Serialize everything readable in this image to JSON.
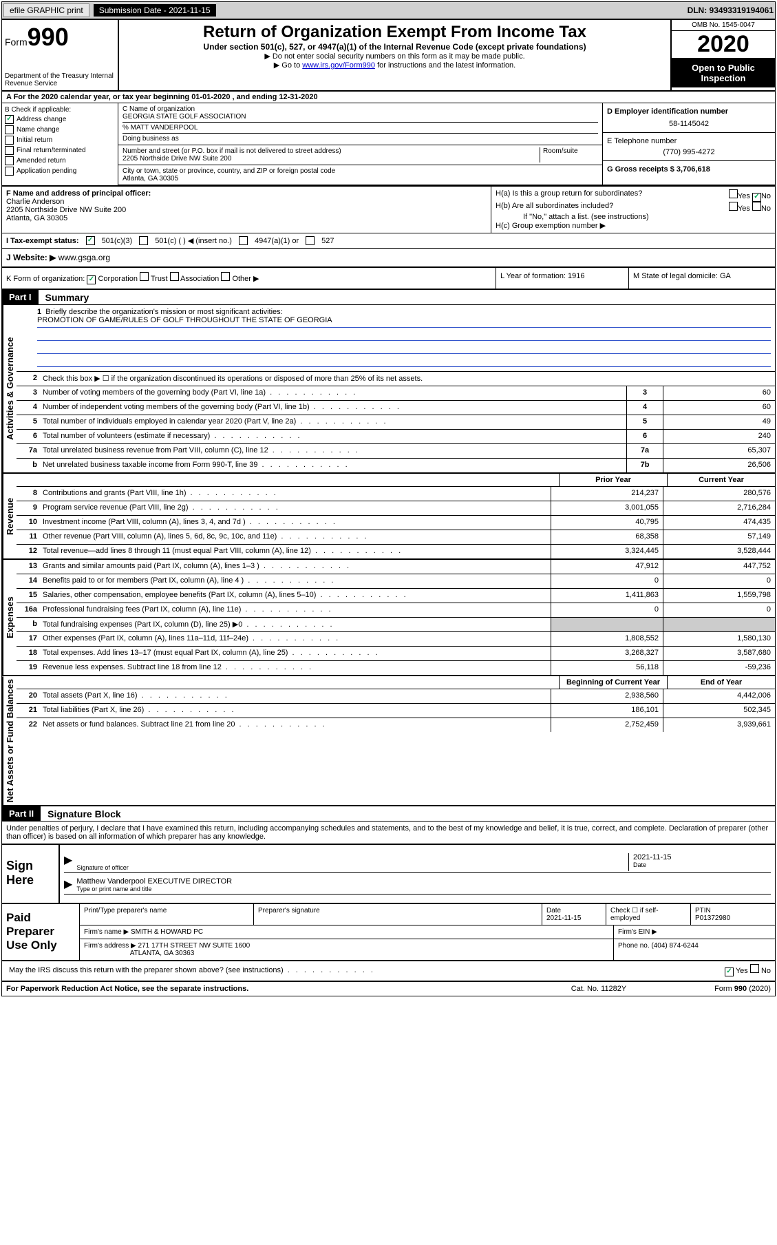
{
  "topbar": {
    "efile": "efile GRAPHIC print",
    "submission_label": "Submission Date - 2021-11-15",
    "dln": "DLN: 93493319194061"
  },
  "header": {
    "form_word": "Form",
    "form_num": "990",
    "dept": "Department of the Treasury\nInternal Revenue Service",
    "title": "Return of Organization Exempt From Income Tax",
    "sub": "Under section 501(c), 527, or 4947(a)(1) of the Internal Revenue Code (except private foundations)",
    "note1": "▶ Do not enter social security numbers on this form as it may be made public.",
    "note2_pre": "▶ Go to ",
    "note2_link": "www.irs.gov/Form990",
    "note2_post": " for instructions and the latest information.",
    "omb": "OMB No. 1545-0047",
    "year": "2020",
    "inspect": "Open to Public Inspection"
  },
  "row_a": "A For the 2020 calendar year, or tax year beginning 01-01-2020    , and ending 12-31-2020",
  "box_b": {
    "label": "B Check if applicable:",
    "address": "Address change",
    "name": "Name change",
    "initial": "Initial return",
    "final": "Final return/terminated",
    "amended": "Amended return",
    "app": "Application pending"
  },
  "box_c": {
    "label": "C Name of organization",
    "org": "GEORGIA STATE GOLF ASSOCIATION",
    "care": "% MATT VANDERPOOL",
    "dba_label": "Doing business as",
    "addr_label": "Number and street (or P.O. box if mail is not delivered to street address)",
    "room": "Room/suite",
    "street": "2205 Northside Drive NW Suite 200",
    "city_label": "City or town, state or province, country, and ZIP or foreign postal code",
    "city": "Atlanta, GA  30305"
  },
  "box_d": {
    "label": "D Employer identification number",
    "ein": "58-1145042",
    "e_label": "E Telephone number",
    "phone": "(770) 995-4272",
    "g_label": "G Gross receipts $ 3,706,618"
  },
  "box_f": {
    "label": "F Name and address of principal officer:",
    "name": "Charlie Anderson",
    "street": "2205 Northside Drive NW Suite 200",
    "city": "Atlanta, GA  30305"
  },
  "box_h": {
    "ha": "H(a)  Is this a group return for subordinates?",
    "hb": "H(b)  Are all subordinates included?",
    "hb_note": "If \"No,\" attach a list. (see instructions)",
    "hc": "H(c)  Group exemption number ▶",
    "yes": "Yes",
    "no": "No"
  },
  "tax_status": {
    "label": "I  Tax-exempt status:",
    "o1": "501(c)(3)",
    "o2": "501(c) (  ) ◀ (insert no.)",
    "o3": "4947(a)(1) or",
    "o4": "527"
  },
  "website": {
    "label": "J  Website: ▶",
    "val": "www.gsga.org"
  },
  "k": {
    "label": "K Form of organization:",
    "corp": "Corporation",
    "trust": "Trust",
    "assoc": "Association",
    "other": "Other ▶"
  },
  "l": {
    "label": "L Year of formation: 1916"
  },
  "m": {
    "label": "M State of legal domicile: GA"
  },
  "part1": {
    "header": "Part I",
    "title": "Summary",
    "side_gov": "Activities & Governance",
    "side_rev": "Revenue",
    "side_exp": "Expenses",
    "side_net": "Net Assets or Fund Balances",
    "l1": "Briefly describe the organization's mission or most significant activities:",
    "l1_val": "PROMOTION OF GAME/RULES OF GOLF THROUGHOUT THE STATE OF GEORGIA",
    "l2": "Check this box ▶ ☐  if the organization discontinued its operations or disposed of more than 25% of its net assets.",
    "lines_gov": [
      {
        "n": "3",
        "t": "Number of voting members of the governing body (Part VI, line 1a)",
        "box": "3",
        "v": "60"
      },
      {
        "n": "4",
        "t": "Number of independent voting members of the governing body (Part VI, line 1b)",
        "box": "4",
        "v": "60"
      },
      {
        "n": "5",
        "t": "Total number of individuals employed in calendar year 2020 (Part V, line 2a)",
        "box": "5",
        "v": "49"
      },
      {
        "n": "6",
        "t": "Total number of volunteers (estimate if necessary)",
        "box": "6",
        "v": "240"
      },
      {
        "n": "7a",
        "t": "Total unrelated business revenue from Part VIII, column (C), line 12",
        "box": "7a",
        "v": "65,307"
      },
      {
        "n": "b",
        "t": "Net unrelated business taxable income from Form 990-T, line 39",
        "box": "7b",
        "v": "26,506"
      }
    ],
    "hdr_prior": "Prior Year",
    "hdr_current": "Current Year",
    "lines_rev": [
      {
        "n": "8",
        "t": "Contributions and grants (Part VIII, line 1h)",
        "p": "214,237",
        "c": "280,576"
      },
      {
        "n": "9",
        "t": "Program service revenue (Part VIII, line 2g)",
        "p": "3,001,055",
        "c": "2,716,284"
      },
      {
        "n": "10",
        "t": "Investment income (Part VIII, column (A), lines 3, 4, and 7d )",
        "p": "40,795",
        "c": "474,435"
      },
      {
        "n": "11",
        "t": "Other revenue (Part VIII, column (A), lines 5, 6d, 8c, 9c, 10c, and 11e)",
        "p": "68,358",
        "c": "57,149"
      },
      {
        "n": "12",
        "t": "Total revenue—add lines 8 through 11 (must equal Part VIII, column (A), line 12)",
        "p": "3,324,445",
        "c": "3,528,444"
      }
    ],
    "lines_exp": [
      {
        "n": "13",
        "t": "Grants and similar amounts paid (Part IX, column (A), lines 1–3 )",
        "p": "47,912",
        "c": "447,752"
      },
      {
        "n": "14",
        "t": "Benefits paid to or for members (Part IX, column (A), line 4 )",
        "p": "0",
        "c": "0"
      },
      {
        "n": "15",
        "t": "Salaries, other compensation, employee benefits (Part IX, column (A), lines 5–10)",
        "p": "1,411,863",
        "c": "1,559,798"
      },
      {
        "n": "16a",
        "t": "Professional fundraising fees (Part IX, column (A), line 11e)",
        "p": "0",
        "c": "0"
      },
      {
        "n": "b",
        "t": "Total fundraising expenses (Part IX, column (D), line 25) ▶0",
        "p": "",
        "c": "",
        "shade": true
      },
      {
        "n": "17",
        "t": "Other expenses (Part IX, column (A), lines 11a–11d, 11f–24e)",
        "p": "1,808,552",
        "c": "1,580,130"
      },
      {
        "n": "18",
        "t": "Total expenses. Add lines 13–17 (must equal Part IX, column (A), line 25)",
        "p": "3,268,327",
        "c": "3,587,680"
      },
      {
        "n": "19",
        "t": "Revenue less expenses. Subtract line 18 from line 12",
        "p": "56,118",
        "c": "-59,236"
      }
    ],
    "hdr_bcy": "Beginning of Current Year",
    "hdr_eoy": "End of Year",
    "lines_net": [
      {
        "n": "20",
        "t": "Total assets (Part X, line 16)",
        "p": "2,938,560",
        "c": "4,442,006"
      },
      {
        "n": "21",
        "t": "Total liabilities (Part X, line 26)",
        "p": "186,101",
        "c": "502,345"
      },
      {
        "n": "22",
        "t": "Net assets or fund balances. Subtract line 21 from line 20",
        "p": "2,752,459",
        "c": "3,939,661"
      }
    ]
  },
  "part2": {
    "header": "Part II",
    "title": "Signature Block",
    "decl": "Under penalties of perjury, I declare that I have examined this return, including accompanying schedules and statements, and to the best of my knowledge and belief, it is true, correct, and complete. Declaration of preparer (other than officer) is based on all information of which preparer has any knowledge.",
    "sign_here": "Sign Here",
    "sig_officer": "Signature of officer",
    "date": "Date",
    "sig_date": "2021-11-15",
    "name_title": "Matthew Vanderpool  EXECUTIVE DIRECTOR",
    "name_label": "Type or print name and title",
    "paid": "Paid Preparer Use Only",
    "pt_name_label": "Print/Type preparer's name",
    "pt_sig_label": "Preparer's signature",
    "pt_date_label": "Date",
    "pt_date": "2021-11-15",
    "pt_check": "Check ☐ if self-employed",
    "ptin_label": "PTIN",
    "ptin": "P01372980",
    "firm_name_label": "Firm's name    ▶",
    "firm_name": "SMITH & HOWARD PC",
    "firm_ein_label": "Firm's EIN ▶",
    "firm_addr_label": "Firm's address ▶",
    "firm_addr1": "271 17TH STREET NW SUITE 1600",
    "firm_addr2": "ATLANTA, GA  30363",
    "phone_label": "Phone no. (404) 874-6244",
    "discuss": "May the IRS discuss this return with the preparer shown above? (see instructions)"
  },
  "footer": {
    "left": "For Paperwork Reduction Act Notice, see the separate instructions.",
    "mid": "Cat. No. 11282Y",
    "right": "Form 990 (2020)"
  }
}
